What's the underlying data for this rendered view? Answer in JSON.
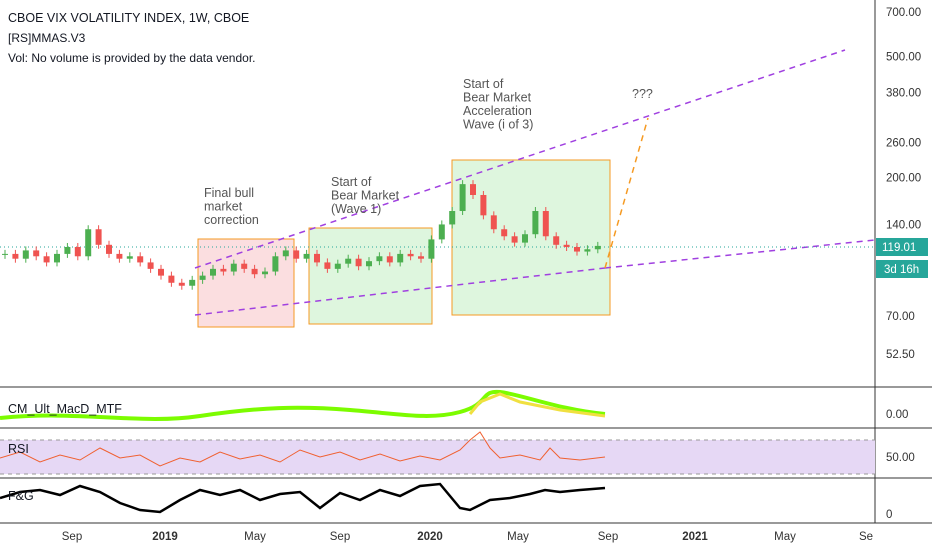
{
  "header": {
    "symbol": "CBOE VIX VOLATILITY INDEX, 1W, CBOE",
    "indicator": "[RS]MMAS.V3",
    "volume": "Vol: No volume is provided by the data vendor."
  },
  "price_axis": {
    "ticks": [
      "700.00",
      "500.00",
      "380.00",
      "260.00",
      "200.00",
      "140.00",
      "70.00",
      "52.50"
    ],
    "last_price": "119.01",
    "countdown": "3d 16h"
  },
  "time_axis": [
    "Sep",
    "2019",
    "May",
    "Sep",
    "2020",
    "May",
    "Sep",
    "2021",
    "May",
    "Se"
  ],
  "annotations": [
    {
      "lines": [
        "Final bull",
        "market",
        "correction"
      ]
    },
    {
      "lines": [
        "Start of",
        "Bear Market",
        "(Wave 1)"
      ]
    },
    {
      "lines": [
        "Start of",
        "Bear Market",
        "Acceleration",
        "Wave (i of 3)"
      ]
    },
    {
      "lines": [
        "???"
      ]
    }
  ],
  "panes": [
    {
      "name": "CM_Ult_MacD_MTF",
      "tick": "0.00"
    },
    {
      "name": "RSI",
      "tick": "50.00"
    },
    {
      "name": "F&G",
      "tick": "0"
    }
  ],
  "closes": [
    112,
    108,
    115,
    110,
    105,
    112,
    118,
    110,
    135,
    120,
    112,
    108,
    110,
    105,
    100,
    95,
    90,
    88,
    92,
    95,
    100,
    98,
    104,
    100,
    96,
    98,
    110,
    115,
    108,
    112,
    105,
    100,
    104,
    108,
    102,
    106,
    110,
    105,
    112,
    110,
    108,
    125,
    140,
    155,
    190,
    175,
    150,
    135,
    128,
    122,
    130,
    155,
    128,
    120,
    118,
    114,
    116,
    119
  ]
}
